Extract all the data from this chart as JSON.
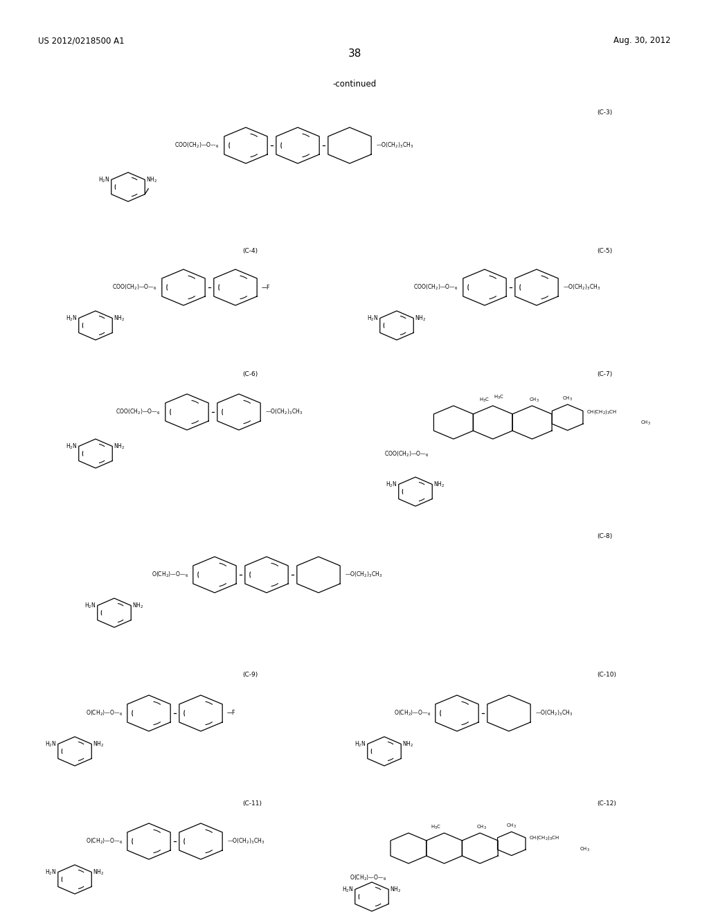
{
  "page_header_left": "US 2012/0218500 A1",
  "page_header_right": "Aug. 30, 2012",
  "page_number": "38",
  "continued_text": "-continued",
  "background_color": "#ffffff",
  "lw": 0.9,
  "font_size_label": 6.5,
  "font_size_chem": 5.8,
  "font_size_small": 5.2
}
